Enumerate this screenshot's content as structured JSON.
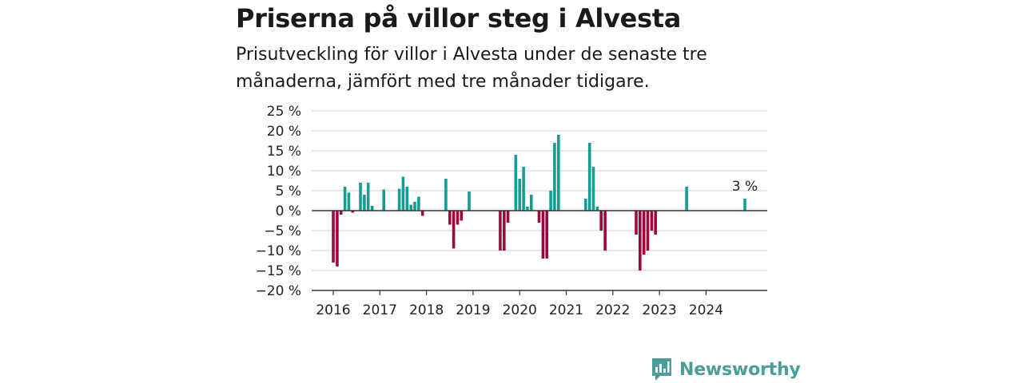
{
  "title": "Priserna på villor steg i Alvesta",
  "subtitle": "Prisutveckling för villor i Alvesta under de senaste tre månaderna, jämfört med tre månader tidigare.",
  "brand": {
    "name": "Newsworthy",
    "icon": "newsworthy-logo-icon"
  },
  "colors": {
    "positive": "#139e94",
    "negative": "#9a0a3f",
    "grid": "#d9d9d9",
    "zero_line": "#333333",
    "brand": "#4a9e99"
  },
  "chart_data": {
    "type": "bar",
    "ylim": [
      -20,
      25
    ],
    "yticks": [
      25,
      20,
      15,
      10,
      5,
      0,
      -5,
      -10,
      -15,
      -20
    ],
    "ytick_labels": [
      "25 %",
      "20 %",
      "15 %",
      "10 %",
      "5 %",
      "0 %",
      "−5 %",
      "−10 %",
      "−15 %",
      "−20 %"
    ],
    "xticks": [
      "2016",
      "2017",
      "2018",
      "2019",
      "2020",
      "2021",
      "2022",
      "2023",
      "2024"
    ],
    "grid": true,
    "unit": "%",
    "last_label": "3 %",
    "series": [
      {
        "values": [
          [
            "2016-01",
            -13
          ],
          [
            "2016-02",
            -14
          ],
          [
            "2016-03",
            -1
          ],
          [
            "2016-04",
            6
          ],
          [
            "2016-05",
            4.5
          ],
          [
            "2016-06",
            -0.5
          ],
          [
            "2016-08",
            7
          ],
          [
            "2016-09",
            4
          ],
          [
            "2016-10",
            7
          ],
          [
            "2016-11",
            1.2
          ],
          [
            "2017-02",
            5.3
          ],
          [
            "2017-06",
            5.5
          ],
          [
            "2017-07",
            8.5
          ],
          [
            "2017-08",
            6
          ],
          [
            "2017-09",
            1.5
          ],
          [
            "2017-10",
            2.2
          ],
          [
            "2017-11",
            3.5
          ],
          [
            "2017-12",
            -1.3
          ],
          [
            "2018-06",
            8
          ],
          [
            "2018-07",
            -3.5
          ],
          [
            "2018-08",
            -9.5
          ],
          [
            "2018-09",
            -3.5
          ],
          [
            "2018-10",
            -2.5
          ],
          [
            "2018-12",
            4.8
          ],
          [
            "2019-08",
            -10
          ],
          [
            "2019-09",
            -10
          ],
          [
            "2019-10",
            -3
          ],
          [
            "2019-12",
            14
          ],
          [
            "2020-01",
            8
          ],
          [
            "2020-02",
            11
          ],
          [
            "2020-03",
            1
          ],
          [
            "2020-04",
            4
          ],
          [
            "2020-06",
            -3
          ],
          [
            "2020-07",
            -12
          ],
          [
            "2020-08",
            -12
          ],
          [
            "2020-09",
            5
          ],
          [
            "2020-10",
            17
          ],
          [
            "2020-11",
            19
          ],
          [
            "2021-06",
            3
          ],
          [
            "2021-07",
            17
          ],
          [
            "2021-08",
            11
          ],
          [
            "2021-09",
            1
          ],
          [
            "2021-10",
            -5
          ],
          [
            "2021-11",
            -10
          ],
          [
            "2022-07",
            -6
          ],
          [
            "2022-08",
            -15
          ],
          [
            "2022-09",
            -11
          ],
          [
            "2022-10",
            -10
          ],
          [
            "2022-11",
            -5
          ],
          [
            "2022-12",
            -6
          ],
          [
            "2023-08",
            6
          ],
          [
            "2024-11",
            3
          ]
        ]
      }
    ]
  }
}
